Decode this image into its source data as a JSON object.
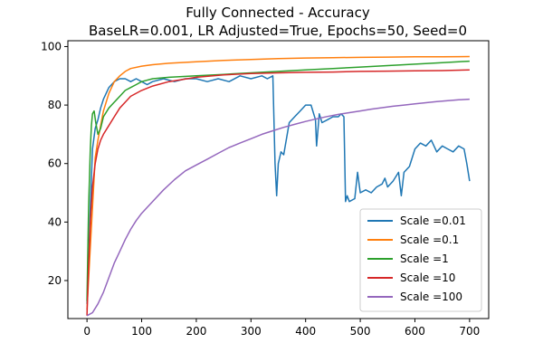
{
  "chart_data": {
    "type": "line",
    "title": "Fully Connected - Accuracy",
    "subtitle": "BaseLR=0.001, LR Adjusted=True, Epochs=50, Seed=0",
    "xlabel": "",
    "ylabel": "",
    "xlim": [
      -35,
      735
    ],
    "ylim": [
      7,
      102
    ],
    "xticks": [
      0,
      100,
      200,
      300,
      400,
      500,
      600,
      700
    ],
    "yticks": [
      20,
      40,
      60,
      80,
      100
    ],
    "grid": false,
    "legend_position": "lower-right",
    "series": [
      {
        "name": "Scale =0.01",
        "color": "#1f77b4",
        "x": [
          0,
          3,
          6,
          10,
          15,
          20,
          25,
          30,
          40,
          50,
          60,
          70,
          80,
          90,
          100,
          110,
          120,
          140,
          160,
          180,
          200,
          220,
          240,
          260,
          280,
          300,
          320,
          330,
          340,
          344,
          347,
          350,
          355,
          360,
          370,
          380,
          390,
          400,
          410,
          418,
          420,
          425,
          430,
          440,
          450,
          460,
          465,
          470,
          473,
          476,
          480,
          490,
          495,
          500,
          510,
          520,
          530,
          540,
          545,
          550,
          560,
          570,
          575,
          580,
          590,
          600,
          610,
          620,
          630,
          640,
          650,
          660,
          670,
          680,
          690,
          695,
          700
        ],
        "y": [
          12,
          25,
          45,
          65,
          72,
          75,
          79,
          82,
          86,
          88,
          89,
          89,
          88,
          89,
          88,
          87,
          88,
          89,
          88,
          89,
          89,
          88,
          89,
          88,
          90,
          89,
          90,
          89,
          90,
          60,
          49,
          60,
          64,
          63,
          74,
          76,
          78,
          80,
          80,
          75,
          66,
          77,
          74,
          75,
          76,
          76,
          77,
          76,
          47,
          49,
          47,
          48,
          57,
          50,
          51,
          50,
          52,
          53,
          55,
          52,
          54,
          57,
          49,
          57,
          59,
          65,
          67,
          66,
          68,
          64,
          66,
          65,
          64,
          66,
          65,
          60,
          54
        ]
      },
      {
        "name": "Scale =0.1",
        "color": "#ff7f0e",
        "x": [
          0,
          5,
          10,
          15,
          20,
          25,
          30,
          40,
          50,
          60,
          70,
          80,
          100,
          120,
          150,
          200,
          250,
          300,
          350,
          400,
          450,
          500,
          550,
          600,
          650,
          700
        ],
        "y": [
          10,
          28,
          45,
          62,
          68,
          73,
          78,
          84,
          88,
          90,
          91.5,
          92.5,
          93.3,
          93.8,
          94.3,
          94.8,
          95.3,
          95.6,
          95.9,
          96.1,
          96.2,
          96.3,
          96.4,
          96.5,
          96.5,
          96.6
        ]
      },
      {
        "name": "Scale =1",
        "color": "#2ca02c",
        "x": [
          0,
          3,
          6,
          8,
          10,
          13,
          16,
          20,
          25,
          30,
          40,
          50,
          60,
          70,
          80,
          90,
          100,
          120,
          150,
          200,
          250,
          300,
          350,
          400,
          450,
          500,
          550,
          600,
          650,
          700
        ],
        "y": [
          13,
          45,
          65,
          73,
          77,
          78,
          74,
          70,
          72,
          76,
          79,
          81,
          83,
          85,
          86,
          87,
          88,
          89,
          89.5,
          90,
          90.5,
          91,
          91.5,
          92,
          92.5,
          93,
          93.5,
          94,
          94.5,
          95
        ]
      },
      {
        "name": "Scale =10",
        "color": "#d62728",
        "x": [
          0,
          3,
          6,
          10,
          15,
          20,
          25,
          30,
          40,
          50,
          60,
          70,
          80,
          100,
          120,
          150,
          200,
          250,
          300,
          350,
          400,
          450,
          500,
          550,
          600,
          650,
          700
        ],
        "y": [
          8,
          25,
          40,
          52,
          60,
          65,
          68,
          70,
          73,
          76,
          79,
          81,
          83,
          85,
          86.5,
          88,
          89.5,
          90.3,
          90.8,
          91,
          91.2,
          91.3,
          91.5,
          91.6,
          91.7,
          91.8,
          92
        ]
      },
      {
        "name": "Scale =100",
        "color": "#9467bd",
        "x": [
          0,
          10,
          20,
          30,
          40,
          50,
          60,
          70,
          80,
          90,
          100,
          120,
          140,
          160,
          180,
          200,
          220,
          240,
          260,
          280,
          300,
          320,
          340,
          360,
          380,
          400,
          420,
          440,
          460,
          480,
          500,
          520,
          540,
          560,
          580,
          600,
          620,
          640,
          660,
          680,
          700
        ],
        "y": [
          8,
          9,
          12,
          16,
          21,
          26,
          30,
          34,
          37.5,
          40.5,
          43,
          47,
          51,
          54.5,
          57.5,
          59.5,
          61.5,
          63.5,
          65.5,
          67,
          68.5,
          70,
          71.2,
          72.4,
          73.4,
          74.4,
          75.3,
          76.1,
          76.8,
          77.4,
          78,
          78.6,
          79.1,
          79.6,
          80,
          80.4,
          80.8,
          81.2,
          81.5,
          81.8,
          82
        ]
      }
    ]
  }
}
